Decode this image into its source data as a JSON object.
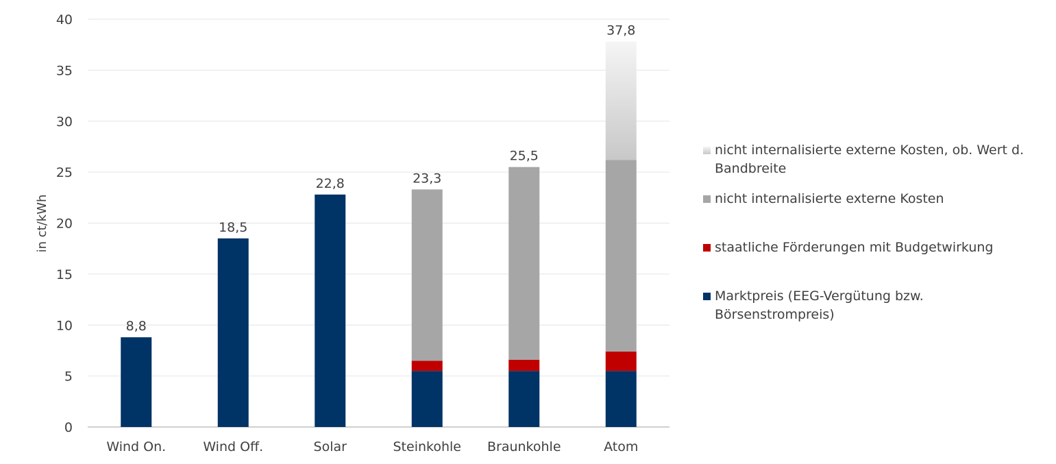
{
  "chart_data": {
    "type": "bar",
    "stacked": true,
    "categories": [
      "Wind On.",
      "Wind Off.",
      "Solar",
      "Steinkohle",
      "Braunkohle",
      "Atom"
    ],
    "ylabel": "in ct/kWh",
    "xlabel": "",
    "ylim": [
      0,
      40
    ],
    "yticks": [
      0,
      5,
      10,
      15,
      20,
      25,
      30,
      35,
      40
    ],
    "grid": true,
    "legend_position": "right",
    "series": [
      {
        "name": "Marktpreis (EEG-Vergütung bzw. Börsenstrompreis)",
        "color": "#003366",
        "values": [
          8.8,
          18.5,
          22.8,
          5.5,
          5.5,
          5.5
        ]
      },
      {
        "name": "staatliche Förderungen mit Budgetwirkung",
        "color": "#C00000",
        "values": [
          0,
          0,
          0,
          1.0,
          1.1,
          1.9
        ]
      },
      {
        "name": "nicht internalisierte externe Kosten",
        "color": "#A6A6A6",
        "values": [
          0,
          0,
          0,
          16.8,
          18.9,
          18.8
        ]
      },
      {
        "name": "nicht internalisierte externe Kosten, ob. Wert d. Bandbreite",
        "color": "gradient",
        "values": [
          0,
          0,
          0,
          0,
          0,
          11.6
        ]
      }
    ],
    "totals": [
      8.8,
      18.5,
      22.8,
      23.3,
      25.5,
      37.8
    ],
    "total_labels": [
      "8,8",
      "18,5",
      "22,8",
      "23,3",
      "25,5",
      "37,8"
    ]
  }
}
